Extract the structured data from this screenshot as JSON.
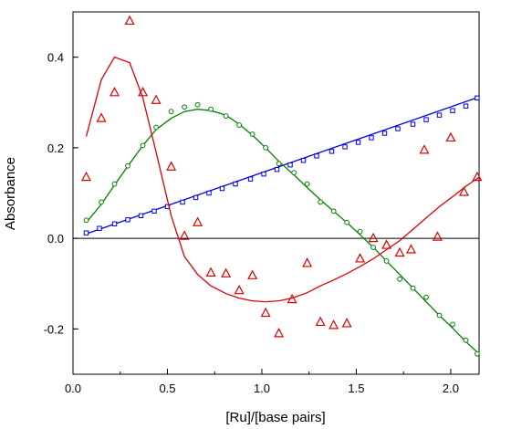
{
  "chart_data": {
    "type": "scatter",
    "xlabel": "[Ru]/[base pairs]",
    "ylabel": "Absorbance",
    "xlim": [
      0.0,
      2.15
    ],
    "ylim": [
      -0.3,
      0.5
    ],
    "grid": false,
    "x_ticks": [
      "0.0",
      "0.5",
      "1.0",
      "1.5",
      "2.0"
    ],
    "y_ticks": [
      "-0.2",
      "0.0",
      "0.2",
      "0.4"
    ],
    "zero_line": 0.0,
    "series": [
      {
        "color": "#0000dd",
        "marker": "square",
        "points": [
          [
            0.07,
            0.012
          ],
          [
            0.14,
            0.022
          ],
          [
            0.22,
            0.032
          ],
          [
            0.29,
            0.041
          ],
          [
            0.36,
            0.05
          ],
          [
            0.43,
            0.06
          ],
          [
            0.5,
            0.07
          ],
          [
            0.58,
            0.08
          ],
          [
            0.65,
            0.09
          ],
          [
            0.72,
            0.1
          ],
          [
            0.79,
            0.11
          ],
          [
            0.86,
            0.12
          ],
          [
            0.94,
            0.131
          ],
          [
            1.01,
            0.142
          ],
          [
            1.08,
            0.152
          ],
          [
            1.15,
            0.162
          ],
          [
            1.22,
            0.172
          ],
          [
            1.29,
            0.182
          ],
          [
            1.37,
            0.192
          ],
          [
            1.44,
            0.202
          ],
          [
            1.51,
            0.212
          ],
          [
            1.58,
            0.222
          ],
          [
            1.65,
            0.232
          ],
          [
            1.72,
            0.242
          ],
          [
            1.8,
            0.252
          ],
          [
            1.87,
            0.262
          ],
          [
            1.94,
            0.272
          ],
          [
            2.01,
            0.282
          ],
          [
            2.08,
            0.292
          ],
          [
            2.14,
            0.31
          ]
        ],
        "fit": [
          [
            0.07,
            0.01
          ],
          [
            2.15,
            0.312
          ]
        ]
      },
      {
        "color": "#008000",
        "marker": "circle",
        "points": [
          [
            0.07,
            0.04
          ],
          [
            0.15,
            0.08
          ],
          [
            0.22,
            0.12
          ],
          [
            0.29,
            0.16
          ],
          [
            0.37,
            0.205
          ],
          [
            0.44,
            0.245
          ],
          [
            0.52,
            0.28
          ],
          [
            0.59,
            0.29
          ],
          [
            0.66,
            0.295
          ],
          [
            0.73,
            0.285
          ],
          [
            0.81,
            0.27
          ],
          [
            0.88,
            0.25
          ],
          [
            0.95,
            0.23
          ],
          [
            1.02,
            0.2
          ],
          [
            1.09,
            0.165
          ],
          [
            1.17,
            0.145
          ],
          [
            1.24,
            0.12
          ],
          [
            1.31,
            0.08
          ],
          [
            1.38,
            0.06
          ],
          [
            1.45,
            0.035
          ],
          [
            1.52,
            0.015
          ],
          [
            1.59,
            -0.02
          ],
          [
            1.66,
            -0.05
          ],
          [
            1.73,
            -0.09
          ],
          [
            1.8,
            -0.11
          ],
          [
            1.87,
            -0.13
          ],
          [
            1.94,
            -0.17
          ],
          [
            2.01,
            -0.19
          ],
          [
            2.08,
            -0.225
          ],
          [
            2.14,
            -0.255
          ]
        ],
        "fit": [
          [
            0.07,
            0.035
          ],
          [
            0.15,
            0.075
          ],
          [
            0.22,
            0.118
          ],
          [
            0.3,
            0.165
          ],
          [
            0.37,
            0.205
          ],
          [
            0.44,
            0.24
          ],
          [
            0.52,
            0.265
          ],
          [
            0.59,
            0.28
          ],
          [
            0.66,
            0.285
          ],
          [
            0.73,
            0.282
          ],
          [
            0.81,
            0.272
          ],
          [
            0.88,
            0.252
          ],
          [
            0.95,
            0.228
          ],
          [
            1.02,
            0.2
          ],
          [
            1.09,
            0.17
          ],
          [
            1.17,
            0.14
          ],
          [
            1.24,
            0.112
          ],
          [
            1.31,
            0.085
          ],
          [
            1.38,
            0.06
          ],
          [
            1.45,
            0.035
          ],
          [
            1.52,
            0.008
          ],
          [
            1.59,
            -0.02
          ],
          [
            1.66,
            -0.05
          ],
          [
            1.73,
            -0.08
          ],
          [
            1.8,
            -0.11
          ],
          [
            1.87,
            -0.14
          ],
          [
            1.94,
            -0.17
          ],
          [
            2.01,
            -0.198
          ],
          [
            2.08,
            -0.228
          ],
          [
            2.15,
            -0.255
          ]
        ]
      },
      {
        "color": "#dd0000",
        "marker": "triangle",
        "points": [
          [
            0.07,
            0.135
          ],
          [
            0.15,
            0.265
          ],
          [
            0.22,
            0.322
          ],
          [
            0.3,
            0.48
          ],
          [
            0.37,
            0.322
          ],
          [
            0.44,
            0.305
          ],
          [
            0.52,
            0.158
          ],
          [
            0.59,
            0.005
          ],
          [
            0.66,
            0.035
          ],
          [
            0.73,
            -0.076
          ],
          [
            0.81,
            -0.078
          ],
          [
            0.88,
            -0.115
          ],
          [
            0.95,
            -0.082
          ],
          [
            1.02,
            -0.165
          ],
          [
            1.09,
            -0.21
          ],
          [
            1.16,
            -0.135
          ],
          [
            1.24,
            -0.055
          ],
          [
            1.31,
            -0.185
          ],
          [
            1.38,
            -0.192
          ],
          [
            1.45,
            -0.188
          ],
          [
            1.52,
            -0.045
          ],
          [
            1.59,
            0.0
          ],
          [
            1.66,
            -0.015
          ],
          [
            1.73,
            -0.032
          ],
          [
            1.79,
            -0.025
          ],
          [
            1.86,
            0.195
          ],
          [
            1.93,
            0.003
          ],
          [
            2.0,
            0.222
          ],
          [
            2.07,
            0.102
          ],
          [
            2.14,
            0.135
          ]
        ],
        "fit": [
          [
            0.07,
            0.225
          ],
          [
            0.15,
            0.35
          ],
          [
            0.22,
            0.4
          ],
          [
            0.3,
            0.388
          ],
          [
            0.37,
            0.31
          ],
          [
            0.44,
            0.19
          ],
          [
            0.52,
            0.05
          ],
          [
            0.59,
            -0.04
          ],
          [
            0.66,
            -0.08
          ],
          [
            0.73,
            -0.105
          ],
          [
            0.81,
            -0.122
          ],
          [
            0.88,
            -0.132
          ],
          [
            0.95,
            -0.138
          ],
          [
            1.02,
            -0.14
          ],
          [
            1.09,
            -0.138
          ],
          [
            1.16,
            -0.132
          ],
          [
            1.24,
            -0.12
          ],
          [
            1.31,
            -0.105
          ],
          [
            1.38,
            -0.092
          ],
          [
            1.45,
            -0.078
          ],
          [
            1.52,
            -0.062
          ],
          [
            1.59,
            -0.045
          ],
          [
            1.66,
            -0.025
          ],
          [
            1.73,
            -0.005
          ],
          [
            1.8,
            0.02
          ],
          [
            1.87,
            0.045
          ],
          [
            1.94,
            0.07
          ],
          [
            2.01,
            0.092
          ],
          [
            2.08,
            0.115
          ],
          [
            2.15,
            0.135
          ]
        ]
      }
    ]
  }
}
